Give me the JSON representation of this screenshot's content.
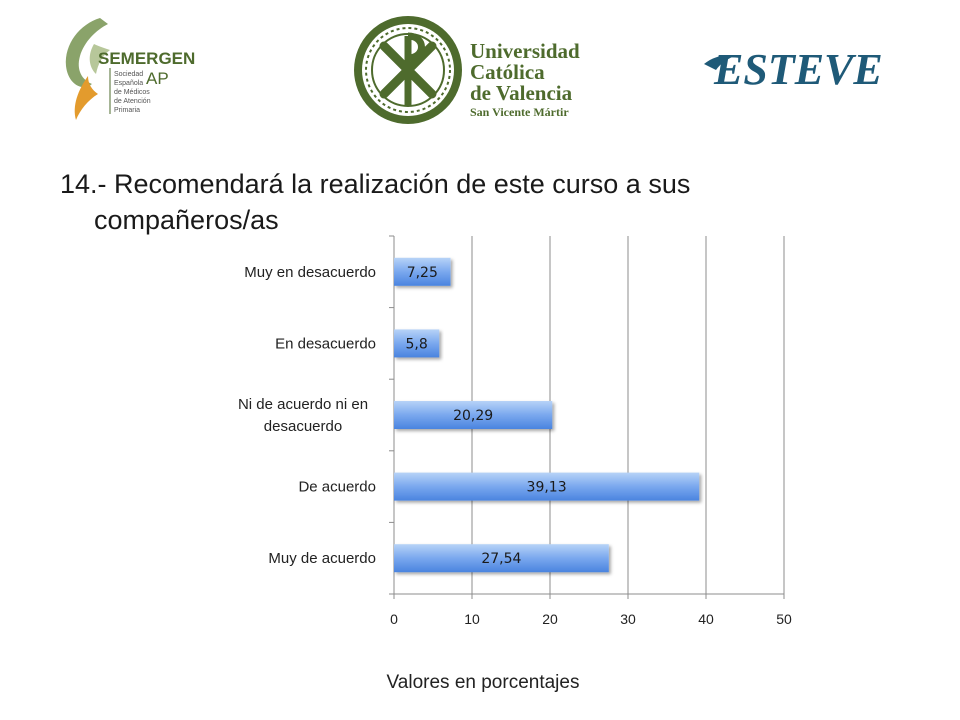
{
  "logos": {
    "semergen": {
      "name": "SEMERGEN",
      "suffix": "AP",
      "lines": [
        "Sociedad",
        "Española",
        "de Médicos",
        "de Atención",
        "Primaria"
      ]
    },
    "ucv": {
      "lines": [
        "Universidad",
        "Católica",
        "de Valencia",
        "San Vicente Mártir"
      ]
    },
    "esteve": {
      "name": "ESTEVE"
    }
  },
  "title_line1": "14.- Recomendará la realización de este curso a sus",
  "title_line2": "compañeros/as",
  "footer_note": "Valores en porcentajes",
  "colors": {
    "bar_top": "#b7d3f7",
    "bar_bottom": "#4a84df",
    "grid": "#8c8c8c",
    "logo_green": "#4e6b2d",
    "logo_orange": "#e39b2d",
    "esteve_blue": "#1f5a78"
  },
  "chart_data": {
    "type": "bar",
    "orientation": "horizontal",
    "categories": [
      "Muy en desacuerdo",
      "En desacuerdo",
      "Ni de acuerdo ni en desacuerdo",
      "De acuerdo",
      "Muy de acuerdo"
    ],
    "category_label_lines": [
      [
        "Muy en desacuerdo"
      ],
      [
        "En desacuerdo"
      ],
      [
        "Ni de acuerdo ni en",
        "desacuerdo"
      ],
      [
        "De acuerdo"
      ],
      [
        "Muy de acuerdo"
      ]
    ],
    "values": [
      7.25,
      5.8,
      20.29,
      39.13,
      27.54
    ],
    "value_labels": [
      "7,25",
      "5,8",
      "20,29",
      "39,13",
      "27,54"
    ],
    "xlim": [
      0,
      50
    ],
    "xticks": [
      "0",
      "10",
      "20",
      "30",
      "40",
      "50"
    ],
    "grid": true,
    "xlabel": "",
    "ylabel": ""
  }
}
